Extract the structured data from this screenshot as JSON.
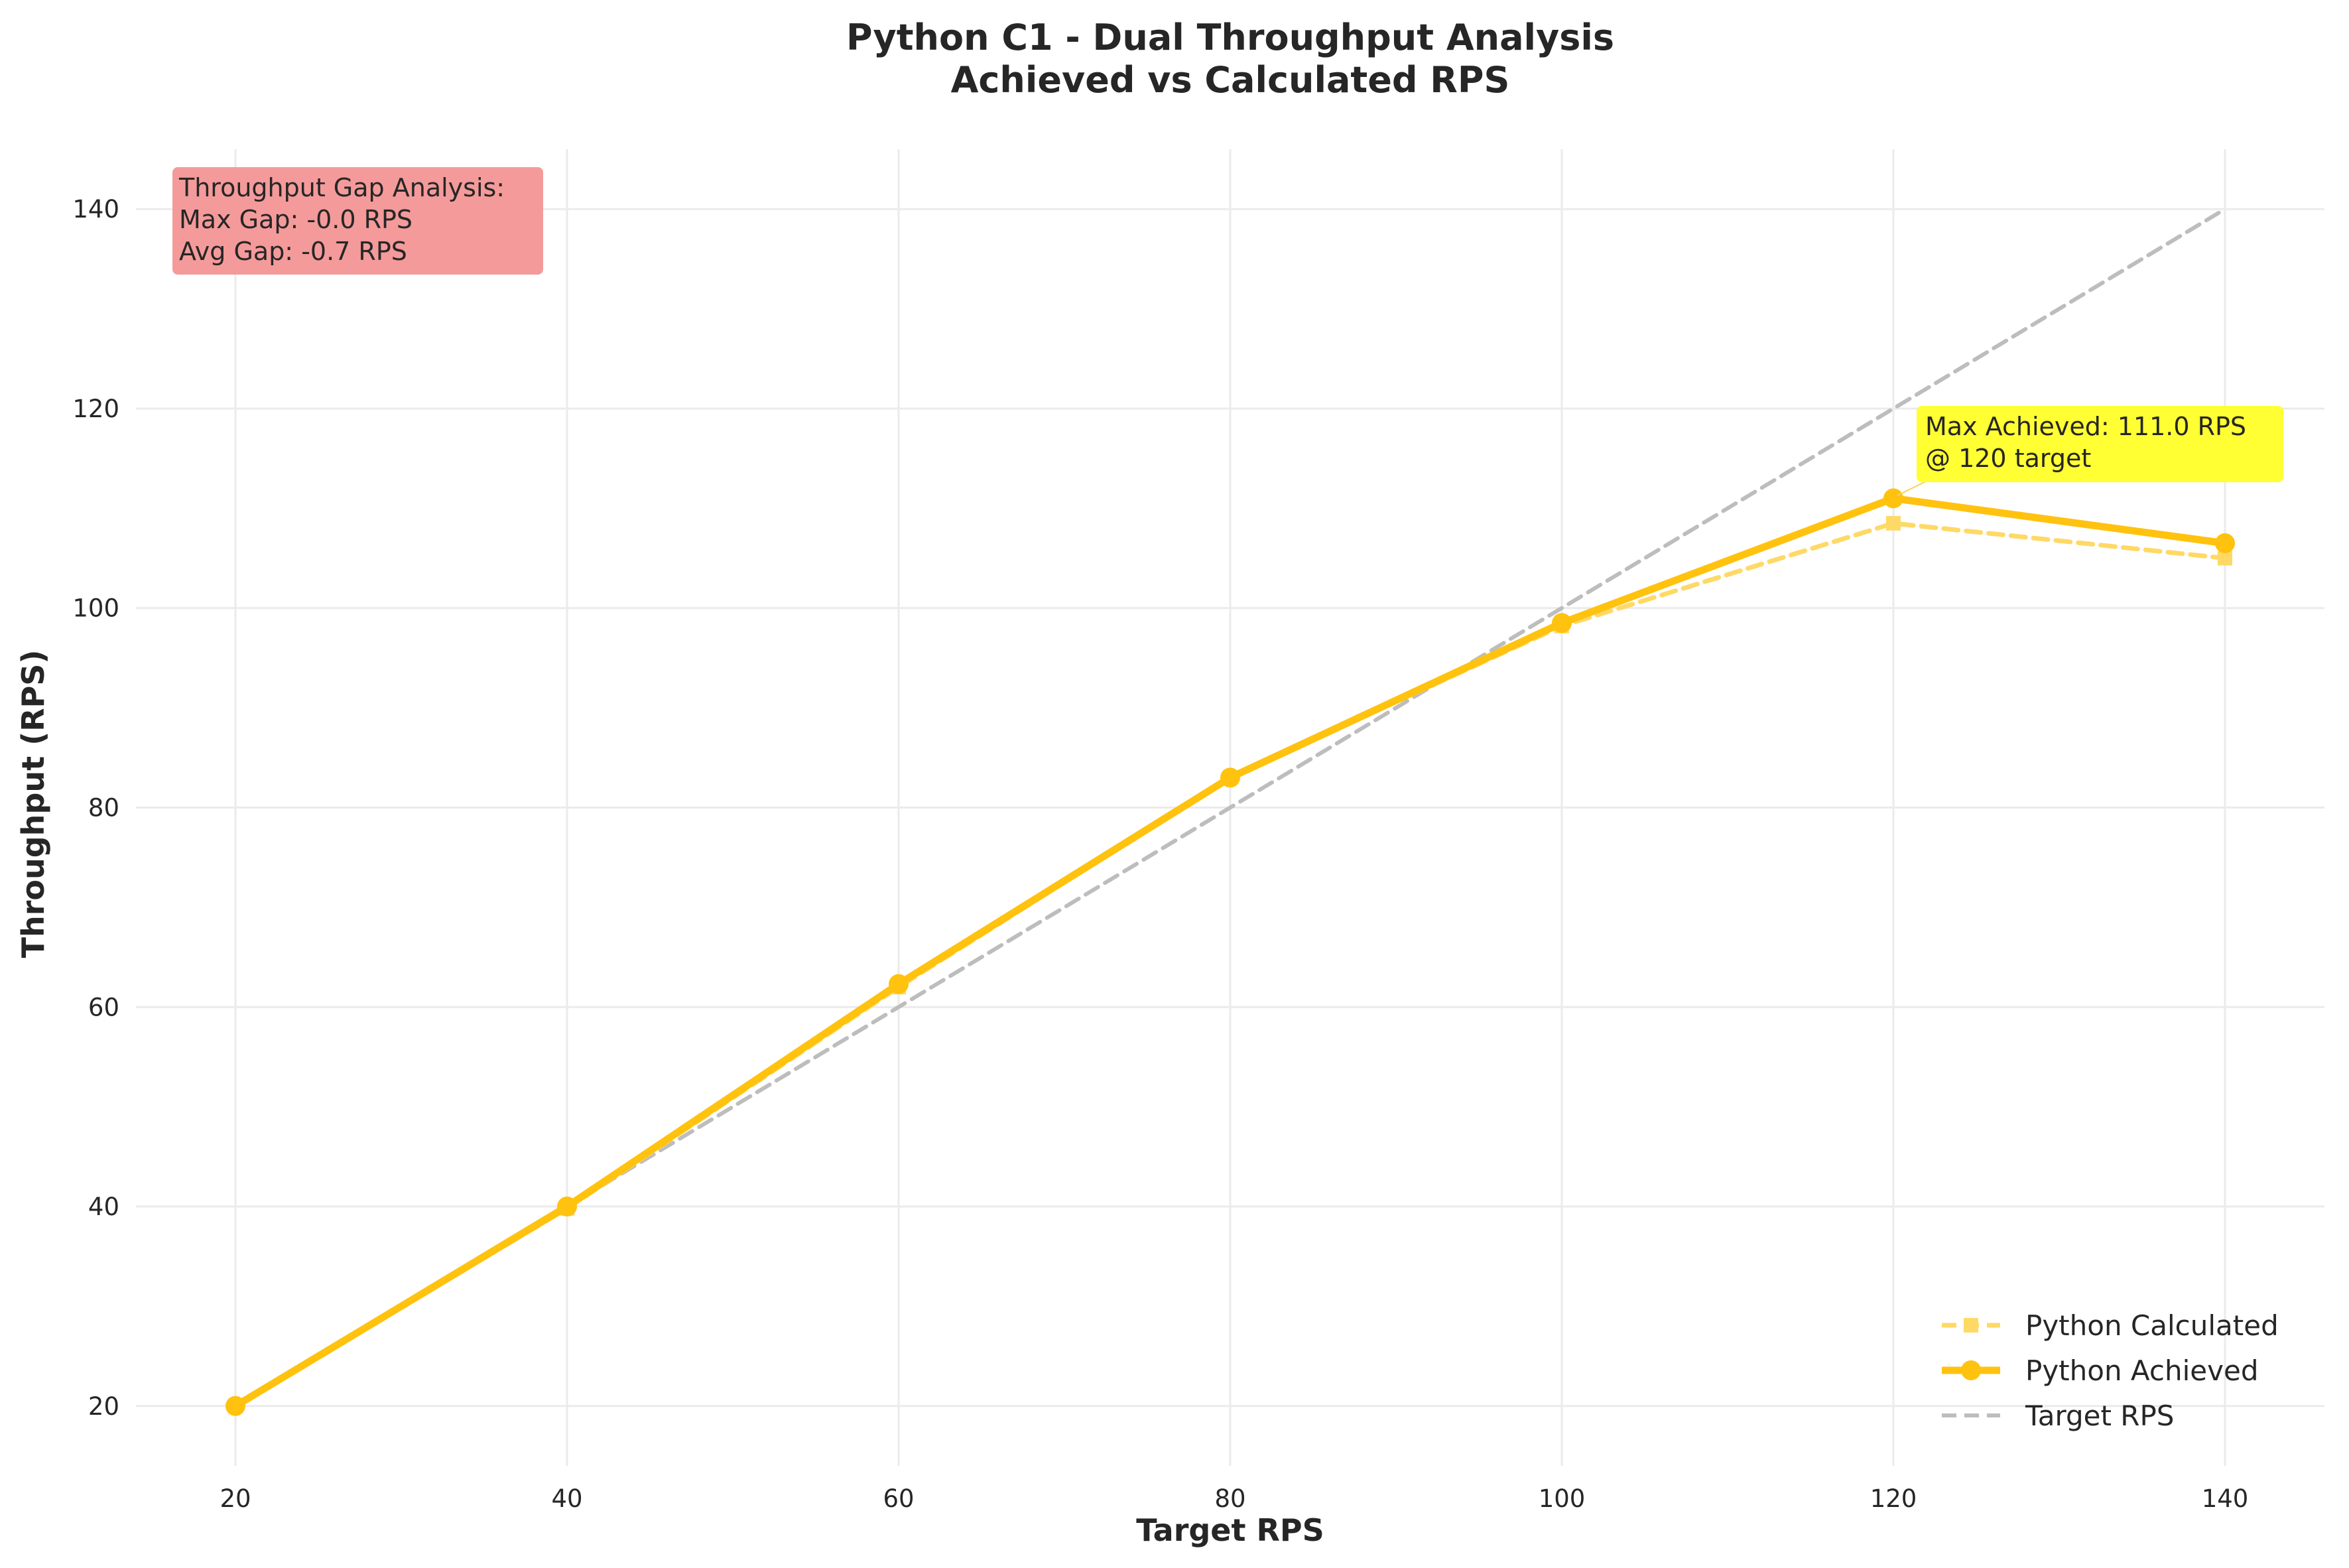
{
  "chart_data": {
    "type": "line",
    "title": "Python C1 - Dual Throughput Analysis",
    "subtitle": "Achieved vs Calculated RPS",
    "xlabel": "Target RPS",
    "ylabel": "Throughput (RPS)",
    "x": [
      20,
      40,
      60,
      80,
      100,
      120,
      140
    ],
    "xlim": [
      14,
      146
    ],
    "ylim": [
      14,
      146
    ],
    "xticks": [
      "20",
      "40",
      "60",
      "80",
      "100",
      "120",
      "140"
    ],
    "yticks": [
      "20",
      "40",
      "60",
      "80",
      "100",
      "120",
      "140"
    ],
    "grid": true,
    "legend_position": "lower right",
    "series": [
      {
        "name": "Python Calculated",
        "values": [
          20.0,
          39.8,
          62.0,
          83.0,
          98.2,
          108.5,
          105.0
        ],
        "color": "#FFD966",
        "style": "dashed",
        "marker": "square"
      },
      {
        "name": "Python Achieved",
        "values": [
          20.0,
          40.0,
          62.3,
          83.0,
          98.5,
          111.0,
          106.5
        ],
        "color": "#FFC20E",
        "style": "solid",
        "marker": "circle"
      },
      {
        "name": "Target RPS",
        "values": [
          20,
          40,
          60,
          80,
          100,
          120,
          140
        ],
        "color": "#BDBDBD",
        "style": "dashed",
        "marker": "none"
      }
    ],
    "annotations": {
      "gap_box": {
        "lines": [
          "Throughput Gap Analysis:",
          "Max Gap: -0.0 RPS",
          "Avg Gap: -0.7 RPS"
        ],
        "color": "#F49A9A"
      },
      "max_box": {
        "lines": [
          "Max Achieved: 111.0 RPS",
          "@ 120 target"
        ],
        "color": "#FFFF33",
        "point": {
          "x": 120,
          "y": 111.0
        }
      }
    }
  }
}
